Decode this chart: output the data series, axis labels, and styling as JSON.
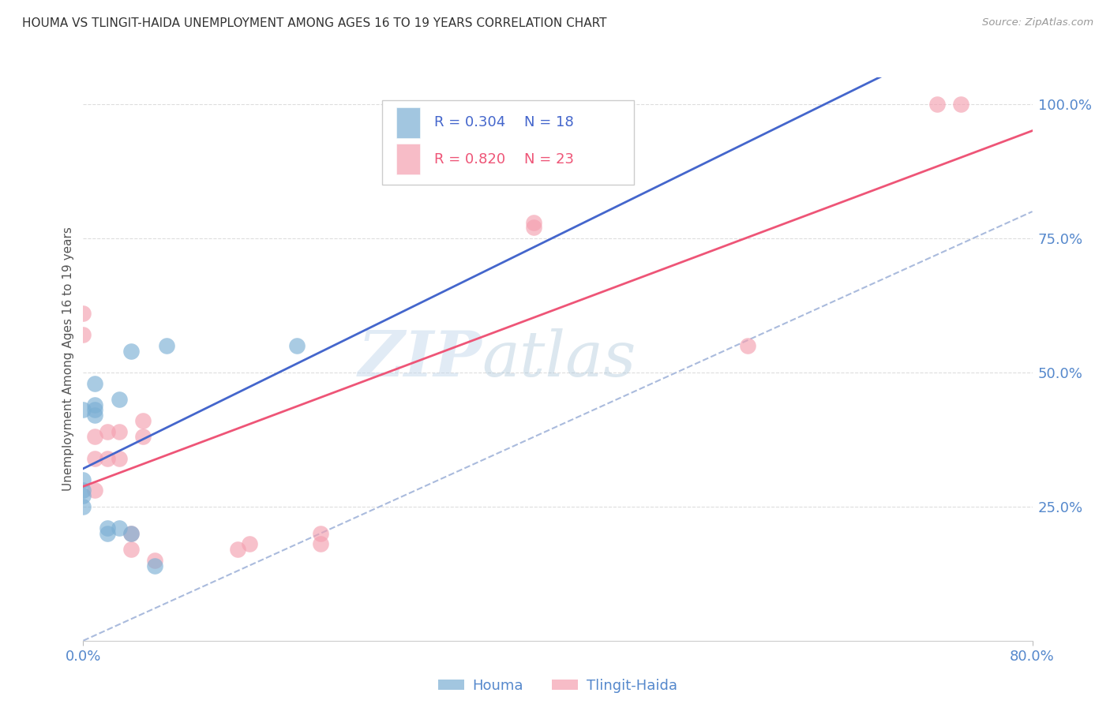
{
  "title": "HOUMA VS TLINGIT-HAIDA UNEMPLOYMENT AMONG AGES 16 TO 19 YEARS CORRELATION CHART",
  "source": "Source: ZipAtlas.com",
  "ylabel": "Unemployment Among Ages 16 to 19 years",
  "x_min": 0.0,
  "x_max": 0.8,
  "y_min": 0.0,
  "y_max": 1.05,
  "houma_R": "0.304",
  "houma_N": "18",
  "tlingit_R": "0.820",
  "tlingit_N": "23",
  "legend_labels": [
    "Houma",
    "Tlingit-Haida"
  ],
  "houma_color": "#7BAFD4",
  "tlingit_color": "#F4A0B0",
  "trendline_houma_color": "#4466CC",
  "trendline_tlingit_color": "#EE5577",
  "diagonal_color": "#AABBDD",
  "watermark_zip": "ZIP",
  "watermark_atlas": "atlas",
  "houma_scatter_x": [
    0.0,
    0.0,
    0.0,
    0.0,
    0.0,
    0.01,
    0.01,
    0.01,
    0.01,
    0.02,
    0.02,
    0.03,
    0.03,
    0.04,
    0.04,
    0.06,
    0.07,
    0.18
  ],
  "houma_scatter_y": [
    0.25,
    0.27,
    0.28,
    0.3,
    0.43,
    0.42,
    0.44,
    0.43,
    0.48,
    0.2,
    0.21,
    0.21,
    0.45,
    0.2,
    0.54,
    0.14,
    0.55,
    0.55
  ],
  "tlingit_scatter_x": [
    0.0,
    0.0,
    0.01,
    0.01,
    0.01,
    0.02,
    0.02,
    0.03,
    0.03,
    0.04,
    0.04,
    0.05,
    0.05,
    0.06,
    0.13,
    0.14,
    0.2,
    0.2,
    0.38,
    0.38,
    0.56,
    0.72,
    0.74
  ],
  "tlingit_scatter_y": [
    0.57,
    0.61,
    0.28,
    0.34,
    0.38,
    0.34,
    0.39,
    0.34,
    0.39,
    0.17,
    0.2,
    0.38,
    0.41,
    0.15,
    0.17,
    0.18,
    0.18,
    0.2,
    0.77,
    0.78,
    0.55,
    1.0,
    1.0
  ],
  "bg_color": "#FFFFFF",
  "grid_color": "#DDDDDD",
  "tick_color": "#5588CC",
  "axis_label_color": "#555555"
}
